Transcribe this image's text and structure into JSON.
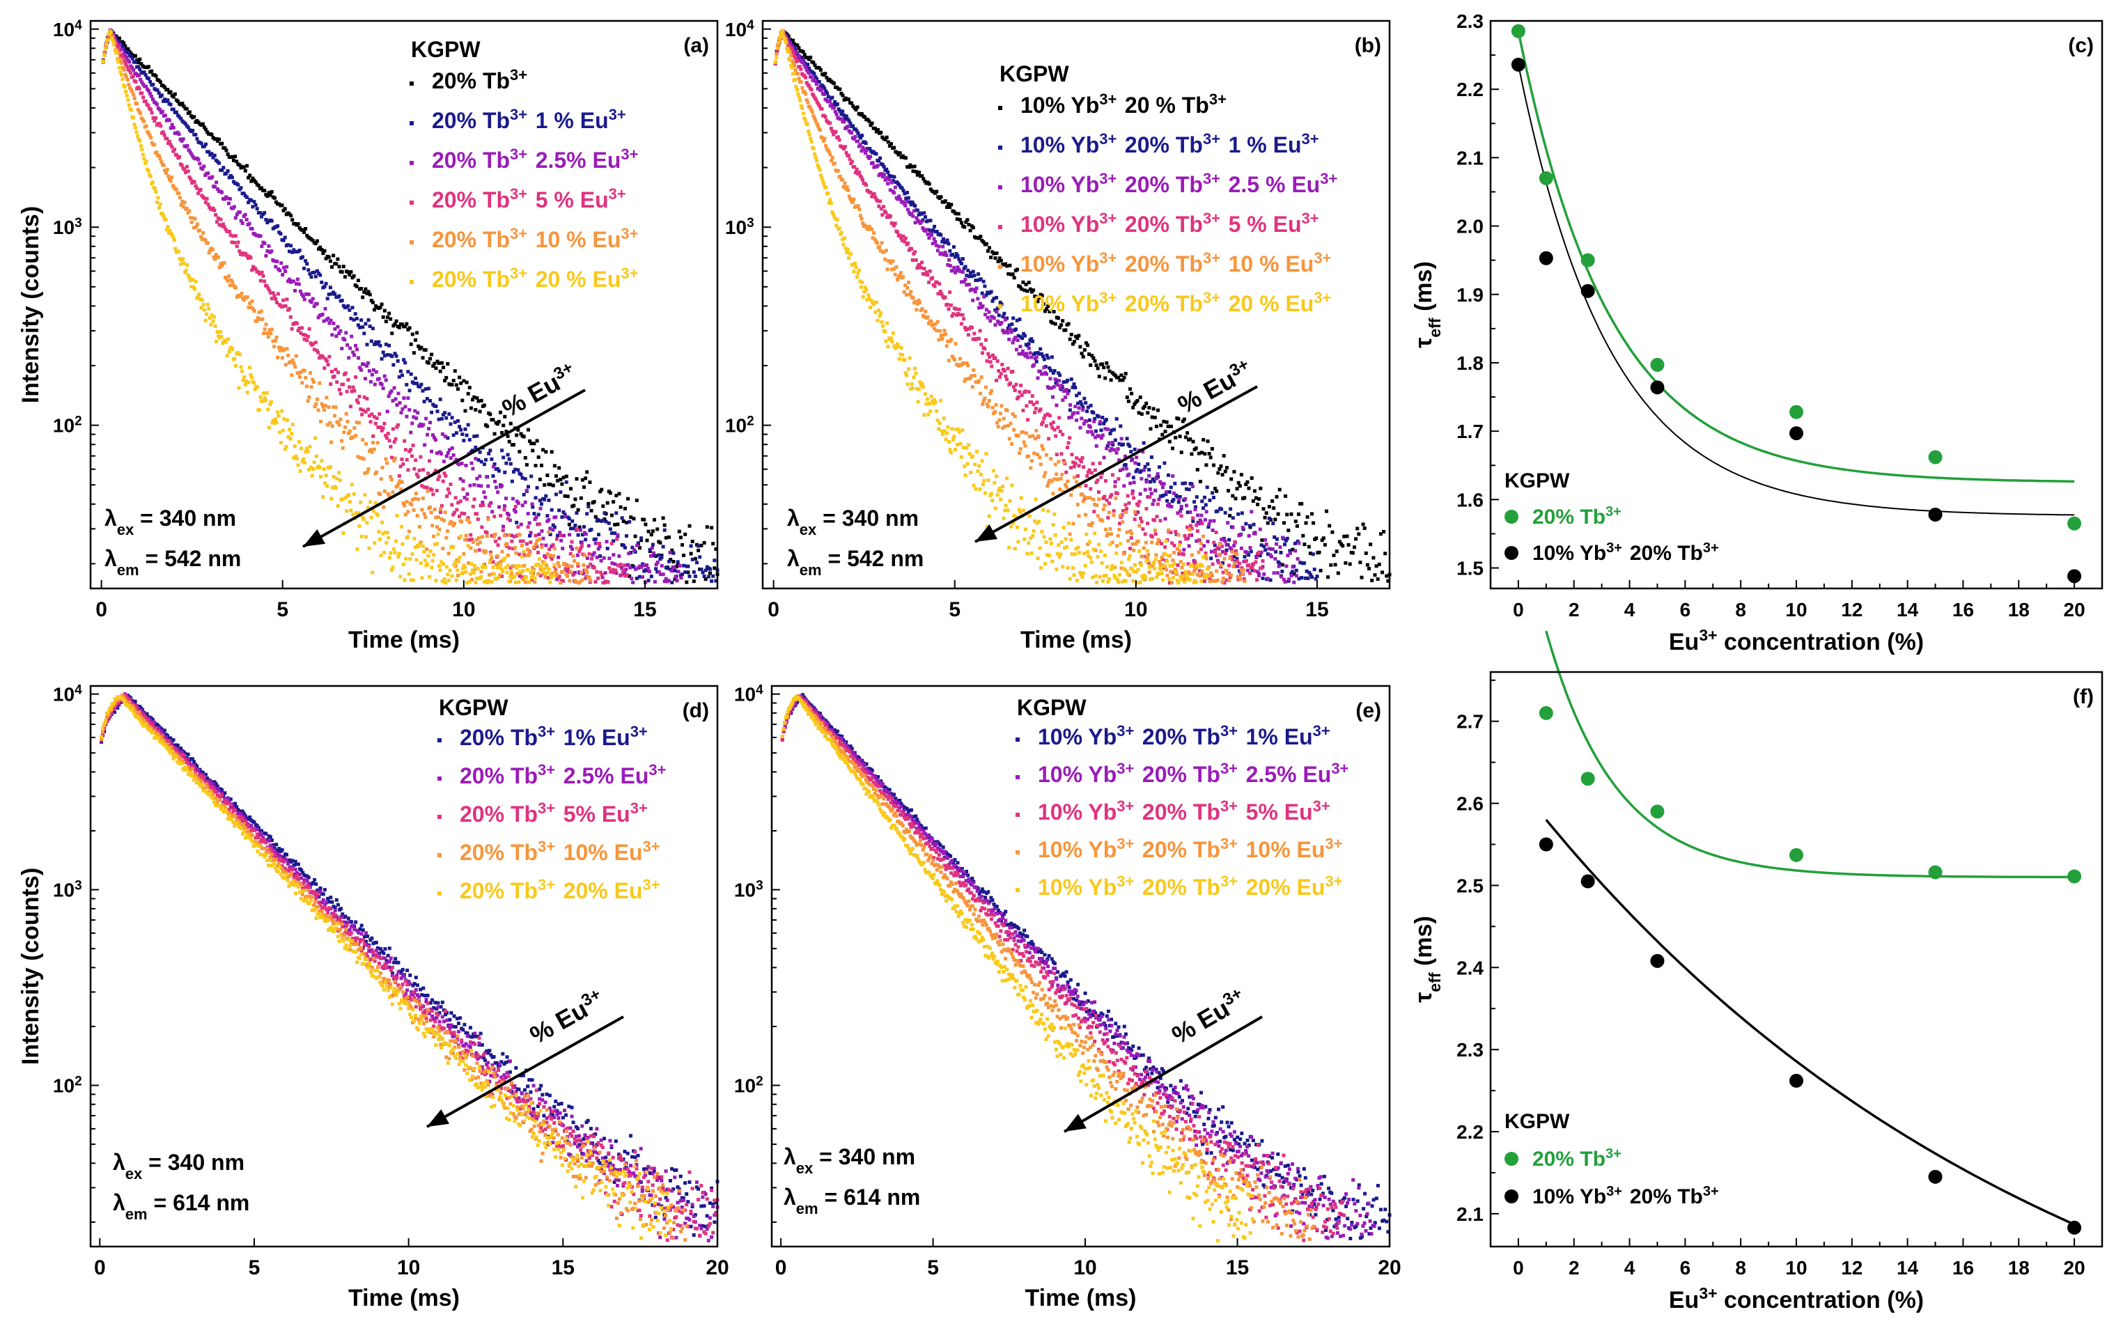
{
  "figure": {
    "panels": [
      "a",
      "b",
      "c",
      "d",
      "e",
      "f"
    ]
  },
  "colors": {
    "black": "#000000",
    "navy": "#1a1a8c",
    "purple": "#9a1bb8",
    "magenta": "#e0327e",
    "orange": "#f7953b",
    "yellow": "#f9c91a",
    "green": "#23a03a",
    "fit_black": "#000000"
  },
  "chart_data": [
    {
      "id": "a",
      "type": "scatter",
      "panel_label": "(a)",
      "xlabel": "Time (ms)",
      "ylabel": "Intensity (counts)",
      "xlim": [
        -0.3,
        17
      ],
      "ylim": [
        15,
        11000
      ],
      "yscale": "log",
      "xticks": [
        0,
        5,
        10,
        15
      ],
      "yticks": [
        100,
        1000,
        10000
      ],
      "ytick_labels": [
        {
          "base": "10",
          "exp": "2"
        },
        {
          "base": "10",
          "exp": "3"
        },
        {
          "base": "10",
          "exp": "4"
        }
      ],
      "legend_title": "KGPW",
      "legend": [
        {
          "parts": [
            [
              "20% Tb",
              "3+"
            ]
          ]
        },
        {
          "parts": [
            [
              "20% Tb",
              "3+"
            ],
            [
              " 1 % Eu",
              "3+"
            ]
          ]
        },
        {
          "parts": [
            [
              "20% Tb",
              "3+"
            ],
            [
              " 2.5% Eu",
              "3+"
            ]
          ]
        },
        {
          "parts": [
            [
              "20% Tb",
              "3+"
            ],
            [
              " 5 % Eu",
              "3+"
            ]
          ]
        },
        {
          "parts": [
            [
              "20% Tb",
              "3+"
            ],
            [
              " 10 % Eu",
              "3+"
            ]
          ]
        },
        {
          "parts": [
            [
              "20% Tb",
              "3+"
            ],
            [
              " 20 % Eu",
              "3+"
            ]
          ]
        }
      ],
      "series": [
        {
          "name": "20% Tb3+",
          "color_key": "black",
          "rise": 0.25,
          "tau": 2.28,
          "fast_frac": 0,
          "fast_tau": 1,
          "xmax": 17
        },
        {
          "name": "20% Tb3+ 1 % Eu3+",
          "color_key": "navy",
          "rise": 0.25,
          "tau": 2.07,
          "fast_frac": 0.12,
          "fast_tau": 0.9,
          "xmax": 17
        },
        {
          "name": "20% Tb3+ 2.5% Eu3+",
          "color_key": "purple",
          "rise": 0.25,
          "tau": 1.95,
          "fast_frac": 0.3,
          "fast_tau": 0.8,
          "xmax": 16
        },
        {
          "name": "20% Tb3+ 5 % Eu3+",
          "color_key": "magenta",
          "rise": 0.25,
          "tau": 1.8,
          "fast_frac": 0.45,
          "fast_tau": 0.7,
          "xmax": 14.5
        },
        {
          "name": "20% Tb3+ 10 % Eu3+",
          "color_key": "orange",
          "rise": 0.25,
          "tau": 1.73,
          "fast_frac": 0.65,
          "fast_tau": 0.6,
          "xmax": 13.5
        },
        {
          "name": "20% Tb3+ 20 % Eu3+",
          "color_key": "yellow",
          "rise": 0.25,
          "tau": 1.56,
          "fast_frac": 0.82,
          "fast_tau": 0.5,
          "xmax": 12.5
        }
      ],
      "arrow_label": {
        "base": "% Eu",
        "exp": "3+"
      },
      "annotations": [
        {
          "sym": "λ",
          "sub": "ex",
          "text": " = 340 nm"
        },
        {
          "sym": "λ",
          "sub": "em",
          "text": " = 542 nm"
        }
      ]
    },
    {
      "id": "b",
      "type": "scatter",
      "panel_label": "(b)",
      "xlabel": "Time (ms)",
      "ylabel": "",
      "xlim": [
        -0.3,
        17
      ],
      "ylim": [
        15,
        11000
      ],
      "yscale": "log",
      "xticks": [
        0,
        5,
        10,
        15
      ],
      "yticks": [
        100,
        1000,
        10000
      ],
      "ytick_labels": [
        {
          "base": "10",
          "exp": "2"
        },
        {
          "base": "10",
          "exp": "3"
        },
        {
          "base": "10",
          "exp": "4"
        }
      ],
      "legend_title": "KGPW",
      "legend": [
        {
          "parts": [
            [
              "10% Yb",
              "3+"
            ],
            [
              " 20 % Tb",
              "3+"
            ]
          ]
        },
        {
          "parts": [
            [
              "10% Yb",
              "3+"
            ],
            [
              " 20% Tb",
              "3+"
            ],
            [
              " 1 % Eu",
              "3+"
            ]
          ]
        },
        {
          "parts": [
            [
              "10% Yb",
              "3+"
            ],
            [
              " 20% Tb",
              "3+"
            ],
            [
              " 2.5 % Eu",
              "3+"
            ]
          ]
        },
        {
          "parts": [
            [
              "10% Yb",
              "3+"
            ],
            [
              " 20% Tb",
              "3+"
            ],
            [
              " 5 % Eu",
              "3+"
            ]
          ]
        },
        {
          "parts": [
            [
              "10% Yb",
              "3+"
            ],
            [
              " 20% Tb",
              "3+"
            ],
            [
              " 10 % Eu",
              "3+"
            ]
          ]
        },
        {
          "parts": [
            [
              "10% Yb",
              "3+"
            ],
            [
              " 20% Tb",
              "3+"
            ],
            [
              " 20 % Eu",
              "3+"
            ]
          ]
        }
      ],
      "series": [
        {
          "name": "10% Yb3+ 20 % Tb3+",
          "color_key": "black",
          "rise": 0.25,
          "tau": 2.23,
          "fast_frac": 0,
          "fast_tau": 1,
          "xmax": 17
        },
        {
          "name": "10% Yb3+ 20% Tb3+ 1 % Eu3+",
          "color_key": "navy",
          "rise": 0.25,
          "tau": 1.95,
          "fast_frac": 0.18,
          "fast_tau": 0.9,
          "xmax": 15
        },
        {
          "name": "10% Yb3+ 20% Tb3+ 2.5 % Eu3+",
          "color_key": "purple",
          "rise": 0.25,
          "tau": 1.9,
          "fast_frac": 0.25,
          "fast_tau": 0.8,
          "xmax": 14.5
        },
        {
          "name": "10% Yb3+ 20% Tb3+ 5 % Eu3+",
          "color_key": "magenta",
          "rise": 0.25,
          "tau": 1.76,
          "fast_frac": 0.45,
          "fast_tau": 0.7,
          "xmax": 13.5
        },
        {
          "name": "10% Yb3+ 20% Tb3+ 10 % Eu3+",
          "color_key": "orange",
          "rise": 0.25,
          "tau": 1.7,
          "fast_frac": 0.65,
          "fast_tau": 0.6,
          "xmax": 13
        },
        {
          "name": "10% Yb3+ 20% Tb3+ 20 % Eu3+",
          "color_key": "yellow",
          "rise": 0.25,
          "tau": 1.48,
          "fast_frac": 0.82,
          "fast_tau": 0.5,
          "xmax": 12
        }
      ],
      "arrow_label": {
        "base": "% Eu",
        "exp": "3+"
      },
      "annotations": [
        {
          "sym": "λ",
          "sub": "ex",
          "text": " = 340 nm"
        },
        {
          "sym": "λ",
          "sub": "em",
          "text": " = 542 nm"
        }
      ]
    },
    {
      "id": "c",
      "type": "scatter",
      "panel_label": "(c)",
      "xlabel": {
        "base": "Eu",
        "exp": "3+",
        "rest": " concentration (%)"
      },
      "ylabel": {
        "sym": "τ",
        "sub": "eff",
        "rest": " (ms)"
      },
      "xlim": [
        -1,
        21
      ],
      "ylim": [
        1.47,
        2.3
      ],
      "xticks": [
        0,
        2,
        4,
        6,
        8,
        10,
        12,
        14,
        16,
        18,
        20
      ],
      "yticks": [
        1.5,
        1.6,
        1.7,
        1.8,
        1.9,
        2.0,
        2.1,
        2.2,
        2.3
      ],
      "ytick_decimals": 1,
      "legend_title": "KGPW",
      "legend": [
        {
          "color_key": "green",
          "parts": [
            [
              "20% Tb",
              "3+"
            ]
          ]
        },
        {
          "color_key": "black",
          "parts": [
            [
              "10% Yb",
              "3+"
            ],
            [
              " 20% Tb",
              "3+"
            ]
          ]
        }
      ],
      "series": [
        {
          "name": "20% Tb3+",
          "color_key": "green",
          "x": [
            0,
            1,
            2.5,
            5,
            10,
            15,
            20
          ],
          "y": [
            2.285,
            2.07,
            1.95,
            1.797,
            1.728,
            1.662,
            1.565
          ],
          "fit": {
            "y0": 1.625,
            "A": 0.66,
            "t": 3.3
          }
        },
        {
          "name": "10% Yb3+ 20% Tb3+",
          "color_key": "black",
          "x": [
            0,
            1,
            2.5,
            5,
            10,
            15,
            20
          ],
          "y": [
            2.236,
            1.953,
            1.905,
            1.764,
            1.697,
            1.578,
            1.488
          ],
          "fit": {
            "y0": 1.576,
            "A": 0.66,
            "t": 3.3
          }
        }
      ]
    },
    {
      "id": "d",
      "type": "scatter",
      "panel_label": "(d)",
      "xlabel": "Time (ms)",
      "ylabel": "Intensity (counts)",
      "xlim": [
        -0.3,
        20
      ],
      "ylim": [
        15,
        11000
      ],
      "yscale": "log",
      "xticks": [
        0,
        5,
        10,
        15,
        20
      ],
      "yticks": [
        100,
        1000,
        10000
      ],
      "ytick_labels": [
        {
          "base": "10",
          "exp": "2"
        },
        {
          "base": "10",
          "exp": "3"
        },
        {
          "base": "10",
          "exp": "4"
        }
      ],
      "legend_title": "KGPW",
      "legend": [
        {
          "parts": [
            [
              "20% Tb",
              "3+"
            ],
            [
              " 1% Eu",
              "3+"
            ]
          ]
        },
        {
          "parts": [
            [
              "20% Tb",
              "3+"
            ],
            [
              " 2.5% Eu",
              "3+"
            ]
          ]
        },
        {
          "parts": [
            [
              "20% Tb",
              "3+"
            ],
            [
              " 5% Eu",
              "3+"
            ]
          ]
        },
        {
          "parts": [
            [
              "20% Tb",
              "3+"
            ],
            [
              " 10% Eu",
              "3+"
            ]
          ]
        },
        {
          "parts": [
            [
              "20% Tb",
              "3+"
            ],
            [
              " 20% Eu",
              "3+"
            ]
          ]
        }
      ],
      "series": [
        {
          "name": "20% Tb3+ 1% Eu3+",
          "color_key": "navy",
          "rise": 0.9,
          "tau": 2.71,
          "fast_frac": 0,
          "fast_tau": 1,
          "xmax": 20
        },
        {
          "name": "20% Tb3+ 2.5% Eu3+",
          "color_key": "purple",
          "rise": 0.85,
          "tau": 2.63,
          "fast_frac": 0,
          "fast_tau": 1,
          "xmax": 20
        },
        {
          "name": "20% Tb3+ 5% Eu3+",
          "color_key": "magenta",
          "rise": 0.8,
          "tau": 2.59,
          "fast_frac": 0,
          "fast_tau": 1,
          "xmax": 20
        },
        {
          "name": "20% Tb3+ 10% Eu3+",
          "color_key": "orange",
          "rise": 0.7,
          "tau": 2.54,
          "fast_frac": 0,
          "fast_tau": 1,
          "xmax": 19
        },
        {
          "name": "20% Tb3+ 20% Eu3+",
          "color_key": "yellow",
          "rise": 0.6,
          "tau": 2.51,
          "fast_frac": 0,
          "fast_tau": 1,
          "xmax": 18.5
        }
      ],
      "arrow_label": {
        "base": "% Eu",
        "exp": "3+"
      },
      "annotations": [
        {
          "sym": "λ",
          "sub": "ex",
          "text": " = 340 nm"
        },
        {
          "sym": "λ",
          "sub": "em",
          "text": " = 614 nm"
        }
      ]
    },
    {
      "id": "e",
      "type": "scatter",
      "panel_label": "(e)",
      "xlabel": "Time (ms)",
      "ylabel": "",
      "xlim": [
        -0.3,
        20
      ],
      "ylim": [
        15,
        11000
      ],
      "yscale": "log",
      "xticks": [
        0,
        5,
        10,
        15,
        20
      ],
      "yticks": [
        100,
        1000,
        10000
      ],
      "ytick_labels": [
        {
          "base": "10",
          "exp": "2"
        },
        {
          "base": "10",
          "exp": "3"
        },
        {
          "base": "10",
          "exp": "4"
        }
      ],
      "legend_title": "KGPW",
      "legend": [
        {
          "parts": [
            [
              "10% Yb",
              "3+"
            ],
            [
              " 20% Tb",
              "3+"
            ],
            [
              " 1% Eu",
              "3+"
            ]
          ]
        },
        {
          "parts": [
            [
              "10% Yb",
              "3+"
            ],
            [
              " 20% Tb",
              "3+"
            ],
            [
              " 2.5% Eu",
              "3+"
            ]
          ]
        },
        {
          "parts": [
            [
              "10% Yb",
              "3+"
            ],
            [
              " 20% Tb",
              "3+"
            ],
            [
              " 5% Eu",
              "3+"
            ]
          ]
        },
        {
          "parts": [
            [
              "10% Yb",
              "3+"
            ],
            [
              " 20% Tb",
              "3+"
            ],
            [
              " 10% Eu",
              "3+"
            ]
          ]
        },
        {
          "parts": [
            [
              "10% Yb",
              "3+"
            ],
            [
              " 20% Tb",
              "3+"
            ],
            [
              " 20% Eu",
              "3+"
            ]
          ]
        }
      ],
      "series": [
        {
          "name": "10% Yb3+ 20% Tb3+ 1% Eu3+",
          "color_key": "navy",
          "rise": 0.7,
          "tau": 2.55,
          "fast_frac": 0,
          "fast_tau": 1,
          "xmax": 20
        },
        {
          "name": "10% Yb3+ 20% Tb3+ 2.5% Eu3+",
          "color_key": "purple",
          "rise": 0.65,
          "tau": 2.5,
          "fast_frac": 0,
          "fast_tau": 1,
          "xmax": 19.5
        },
        {
          "name": "10% Yb3+ 20% Tb3+ 5% Eu3+",
          "color_key": "magenta",
          "rise": 0.6,
          "tau": 2.41,
          "fast_frac": 0,
          "fast_tau": 1,
          "xmax": 18.5
        },
        {
          "name": "10% Yb3+ 20% Tb3+ 10% Eu3+",
          "color_key": "orange",
          "rise": 0.55,
          "tau": 2.26,
          "fast_frac": 0,
          "fast_tau": 1,
          "xmax": 17.5
        },
        {
          "name": "10% Yb3+ 20% Tb3+ 20% Eu3+",
          "color_key": "yellow",
          "rise": 0.5,
          "tau": 2.08,
          "fast_frac": 0,
          "fast_tau": 1,
          "xmax": 15.5
        }
      ],
      "arrow_label": {
        "base": "% Eu",
        "exp": "3+"
      },
      "annotations": [
        {
          "sym": "λ",
          "sub": "ex",
          "text": " = 340 nm"
        },
        {
          "sym": "λ",
          "sub": "em",
          "text": " = 614 nm"
        }
      ]
    },
    {
      "id": "f",
      "type": "scatter",
      "panel_label": "(f)",
      "xlabel": {
        "base": "Eu",
        "exp": "3+",
        "rest": " concentration (%)"
      },
      "ylabel": {
        "sym": "τ",
        "sub": "eff",
        "rest": " (ms)"
      },
      "xlim": [
        -1,
        21
      ],
      "ylim": [
        2.06,
        2.76
      ],
      "xticks": [
        0,
        2,
        4,
        6,
        8,
        10,
        12,
        14,
        16,
        18,
        20
      ],
      "yticks": [
        2.1,
        2.2,
        2.3,
        2.4,
        2.5,
        2.6,
        2.7
      ],
      "ytick_decimals": 1,
      "legend_title": "KGPW",
      "legend": [
        {
          "color_key": "green",
          "parts": [
            [
              "20% Tb",
              "3+"
            ]
          ]
        },
        {
          "color_key": "black",
          "parts": [
            [
              "10% Yb",
              "3+"
            ],
            [
              " 20% Tb",
              "3+"
            ]
          ]
        }
      ],
      "series": [
        {
          "name": "20% Tb3+",
          "color_key": "green",
          "x": [
            1,
            2.5,
            5,
            10,
            15,
            20
          ],
          "y": [
            2.71,
            2.63,
            2.59,
            2.537,
            2.516,
            2.511
          ],
          "fit": {
            "y0": 2.51,
            "A": 0.3,
            "t": 2.5
          }
        },
        {
          "name": "10% Yb3+ 20% Tb3+",
          "color_key": "black",
          "x": [
            1,
            2.5,
            5,
            10,
            15,
            20
          ],
          "y": [
            2.55,
            2.505,
            2.408,
            2.262,
            2.145,
            2.083
          ],
          "fit": {
            "y0": 1.8,
            "A": 0.78,
            "t": 19
          }
        }
      ]
    }
  ]
}
